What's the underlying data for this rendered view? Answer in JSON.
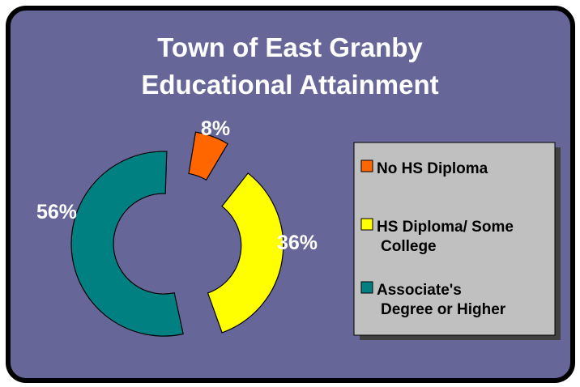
{
  "chart_data": {
    "type": "pie",
    "variant": "exploded-donut",
    "title": [
      "Town of East Granby",
      "Educational Attainment"
    ],
    "slices": [
      {
        "label": "No HS Diploma",
        "legend_lines": [
          "No HS Diploma"
        ],
        "value": 8,
        "display": "8%",
        "color": "#ff6600"
      },
      {
        "label": "HS Diploma/ Some College",
        "legend_lines": [
          "HS Diploma/ Some",
          "College"
        ],
        "value": 36,
        "display": "36%",
        "color": "#ffff00"
      },
      {
        "label": "Associate's Degree or Higher",
        "legend_lines": [
          "Associate's",
          "Degree or Higher"
        ],
        "value": 56,
        "display": "56%",
        "color": "#008080"
      }
    ],
    "legend_position": "right",
    "background": "#666699",
    "frame_color": "#000000"
  }
}
